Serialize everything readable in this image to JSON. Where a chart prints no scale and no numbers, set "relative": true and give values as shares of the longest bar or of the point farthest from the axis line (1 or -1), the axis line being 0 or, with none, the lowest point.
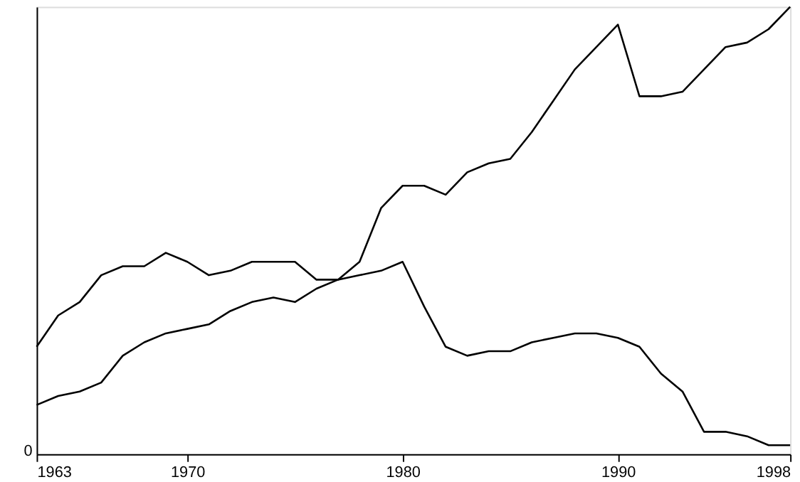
{
  "chart_data": {
    "type": "line",
    "relative": true,
    "x": [
      1963,
      1964,
      1965,
      1966,
      1967,
      1968,
      1969,
      1970,
      1971,
      1972,
      1973,
      1974,
      1975,
      1976,
      1977,
      1978,
      1979,
      1980,
      1981,
      1982,
      1983,
      1984,
      1985,
      1986,
      1987,
      1988,
      1989,
      1990,
      1991,
      1992,
      1993,
      1994,
      1995,
      1996,
      1997,
      1998
    ],
    "xlim": [
      1963,
      1998
    ],
    "xticks": [
      1963,
      1970,
      1980,
      1990,
      1998
    ],
    "series": [
      {
        "color": "#000000",
        "values": [
          0.11,
          0.13,
          0.14,
          0.16,
          0.22,
          0.25,
          0.27,
          0.28,
          0.29,
          0.32,
          0.34,
          0.35,
          0.34,
          0.37,
          0.39,
          0.43,
          0.55,
          0.6,
          0.6,
          0.58,
          0.63,
          0.65,
          0.66,
          0.72,
          0.79,
          0.86,
          0.91,
          0.96,
          0.8,
          0.8,
          0.81,
          0.86,
          0.91,
          0.92,
          0.95,
          1
        ]
      },
      {
        "color": "#000000",
        "values": [
          0.24,
          0.31,
          0.34,
          0.4,
          0.42,
          0.42,
          0.45,
          0.43,
          0.4,
          0.41,
          0.43,
          0.43,
          0.43,
          0.39,
          0.39,
          0.4,
          0.41,
          0.43,
          0.33,
          0.24,
          0.22,
          0.23,
          0.23,
          0.25,
          0.26,
          0.27,
          0.27,
          0.26,
          0.24,
          0.18,
          0.14,
          0.05,
          0.05,
          0.04,
          0.02,
          0.02
        ]
      }
    ],
    "annotations": [
      "0"
    ],
    "grid": false,
    "marker": "none",
    "line_style": "solid"
  }
}
